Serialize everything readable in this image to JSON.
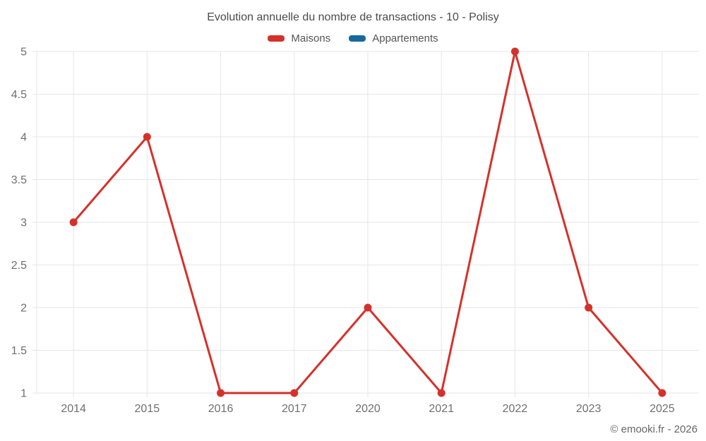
{
  "chart_data": {
    "type": "line",
    "title": "Evolution annuelle du nombre de transactions - 10 - Polisy",
    "categories": [
      "2014",
      "2015",
      "2016",
      "2017",
      "2020",
      "2021",
      "2022",
      "2023",
      "2025"
    ],
    "series": [
      {
        "name": "Maisons",
        "color": "#d5312b",
        "values": [
          3,
          4,
          1,
          1,
          2,
          1,
          5,
          2,
          1
        ]
      },
      {
        "name": "Appartements",
        "color": "#17699c",
        "values": []
      }
    ],
    "ylim": [
      1,
      5
    ],
    "ytick_step": 0.5,
    "yticks": [
      "1",
      "1.5",
      "2",
      "2.5",
      "3",
      "3.5",
      "4",
      "4.5",
      "5"
    ],
    "xlabel": "",
    "ylabel": "",
    "grid": "both",
    "legend_position": "top"
  },
  "footer": {
    "credit": "© emooki.fr - 2026"
  },
  "colors": {
    "grid": "#e6e6e6",
    "axis_text": "#6f6f6f",
    "maisons": "#d5312b",
    "appartements": "#17699c"
  }
}
